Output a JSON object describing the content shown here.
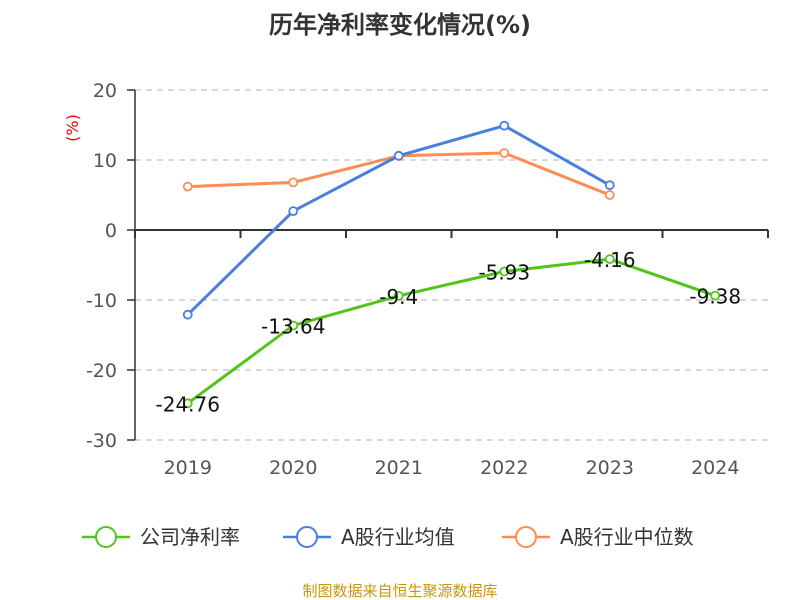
{
  "chart_data": {
    "type": "line",
    "title": "历年净利率变化情况(%)",
    "ylabel": "(%)",
    "categories": [
      "2019",
      "2020",
      "2021",
      "2022",
      "2023",
      "2024"
    ],
    "ylim": [
      -30,
      20
    ],
    "yticks": [
      20,
      10,
      0,
      -10,
      -20,
      -30
    ],
    "grid": true,
    "legend_position": "bottom",
    "series": [
      {
        "name": "公司净利率",
        "color": "#52c41a",
        "values": [
          -24.76,
          -13.64,
          -9.4,
          -5.93,
          -4.16,
          -9.38
        ],
        "labels": [
          "-24.76",
          "-13.64",
          "-9.4",
          "-5.93",
          "-4.16",
          "-9.38"
        ]
      },
      {
        "name": "A股行业均值",
        "color": "#4a7fe0",
        "values": [
          -12.1,
          2.7,
          10.6,
          14.9,
          6.4,
          null
        ]
      },
      {
        "name": "A股行业中位数",
        "color": "#ff8c55",
        "values": [
          6.2,
          6.8,
          10.6,
          11.0,
          5.0,
          null
        ]
      }
    ]
  },
  "source": "制图数据来自恒生聚源数据库"
}
